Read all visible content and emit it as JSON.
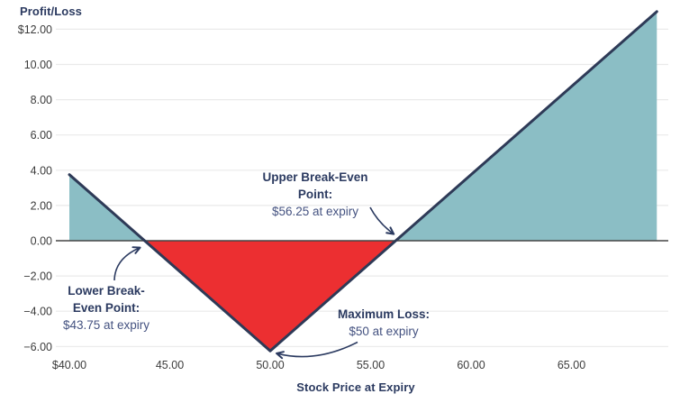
{
  "chart_data": {
    "type": "line",
    "title": "",
    "ylabel": "Profit/Loss",
    "xlabel": "Stock Price at Expiry",
    "x_ticks": [
      {
        "value": 40,
        "label": "$40.00"
      },
      {
        "value": 45,
        "label": "45.00"
      },
      {
        "value": 50,
        "label": "50.00"
      },
      {
        "value": 55,
        "label": "55.00"
      },
      {
        "value": 60,
        "label": "60.00"
      },
      {
        "value": 65,
        "label": "65.00"
      }
    ],
    "y_ticks": [
      {
        "value": 12,
        "label": "$12.00"
      },
      {
        "value": 10,
        "label": "10.00"
      },
      {
        "value": 8,
        "label": "8.00"
      },
      {
        "value": 6,
        "label": "6.00"
      },
      {
        "value": 4,
        "label": "4.00"
      },
      {
        "value": 2,
        "label": "2.00"
      },
      {
        "value": 0,
        "label": "0.00"
      },
      {
        "value": -2,
        "label": "−2.00"
      },
      {
        "value": -4,
        "label": "−4.00"
      },
      {
        "value": -6,
        "label": "−6.00"
      }
    ],
    "xlim": [
      39.3,
      69.8
    ],
    "ylim": [
      -6.6,
      13.1
    ],
    "grid": "horizontal-only",
    "legend": "none",
    "series": [
      {
        "name": "profit-loss-at-expiry",
        "color": "#2E3A57",
        "points": [
          [
            40,
            3.75
          ],
          [
            50,
            -6.25
          ],
          [
            69.25,
            13.0
          ]
        ]
      }
    ],
    "regions": [
      {
        "name": "profit-region-left",
        "color": "#8BBEC5",
        "points": [
          [
            40,
            0
          ],
          [
            40,
            3.75
          ],
          [
            43.75,
            0
          ]
        ]
      },
      {
        "name": "loss-region",
        "color": "#EC2F31",
        "points": [
          [
            43.75,
            0
          ],
          [
            50,
            -6.25
          ],
          [
            56.25,
            0
          ]
        ]
      },
      {
        "name": "profit-region-right",
        "color": "#8BBEC5",
        "points": [
          [
            56.25,
            0
          ],
          [
            69.25,
            13.0
          ],
          [
            69.25,
            0
          ]
        ]
      }
    ],
    "key_points": {
      "lower_break_even_price": 43.75,
      "upper_break_even_price": 56.25,
      "max_loss_price": 50,
      "max_loss_value": -6.25
    }
  },
  "annotations": {
    "upper_break_even": {
      "lines": [
        "Upper Break-Even",
        "Point:"
      ],
      "value": "$56.25 at expiry",
      "target": [
        56.25,
        0
      ]
    },
    "lower_break_even": {
      "lines": [
        "Lower Break-",
        "Even Point:"
      ],
      "value": "$43.75 at expiry",
      "target": [
        43.75,
        0
      ]
    },
    "maximum_loss": {
      "lines": [
        "Maximum Loss:"
      ],
      "value": "$50 at expiry",
      "target": [
        50,
        -6.25
      ]
    }
  },
  "colors": {
    "navy_line": "#2E3A57",
    "navy_text": "#2B3A60",
    "value_text": "#445280",
    "profit_fill": "#8BBEC5",
    "loss_fill": "#EC2F31",
    "gridline": "#EAEAEA",
    "zero_line": "#454545",
    "tick_text": "#3B3B3B"
  }
}
